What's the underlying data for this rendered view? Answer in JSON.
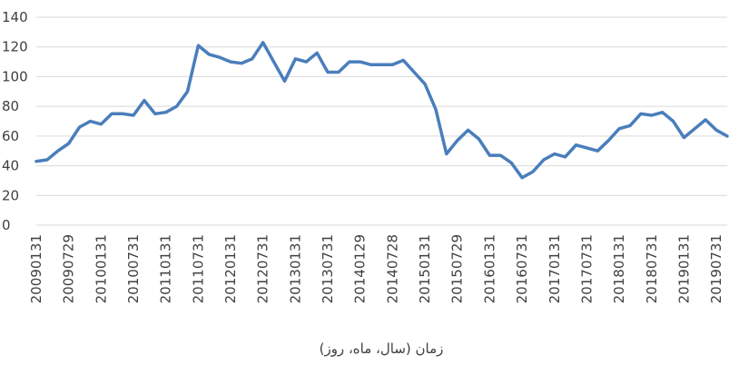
{
  "chart_data": {
    "type": "line",
    "x_label": "زمان (سال، ماه، روز)",
    "categories": [
      "20090131",
      null,
      null,
      "20090729",
      null,
      null,
      "20100131",
      null,
      null,
      "20100731",
      null,
      null,
      "20110131",
      null,
      null,
      "20110731",
      null,
      null,
      "20120131",
      null,
      null,
      "20120731",
      null,
      null,
      "20130131",
      null,
      null,
      "20130731",
      null,
      null,
      "20140129",
      null,
      null,
      "20140728",
      null,
      null,
      "20150131",
      null,
      null,
      "20150729",
      null,
      null,
      "20160131",
      null,
      null,
      "20160731",
      null,
      null,
      "20170131",
      null,
      null,
      "20170731",
      null,
      null,
      "20180131",
      null,
      null,
      "20180731",
      null,
      null,
      "20190131",
      null,
      null,
      "20190731",
      null
    ],
    "series": [
      {
        "color": "#4a7ebb",
        "values": [
          43,
          44,
          50,
          55,
          66,
          70,
          68,
          75,
          75,
          74,
          84,
          75,
          76,
          80,
          90,
          121,
          115,
          113,
          110,
          109,
          112,
          123,
          110,
          97,
          112,
          110,
          116,
          103,
          103,
          110,
          110,
          108,
          108,
          108,
          111,
          103,
          95,
          78,
          48,
          57,
          64,
          58,
          47,
          47,
          42,
          32,
          36,
          44,
          48,
          46,
          54,
          52,
          50,
          57,
          65,
          67,
          75,
          74,
          76,
          70,
          59,
          65,
          71,
          64,
          60
        ]
      }
    ],
    "ylim": [
      0,
      140
    ],
    "yticks": [
      0,
      20,
      40,
      60,
      80,
      100,
      120,
      140
    ],
    "grid": true
  }
}
